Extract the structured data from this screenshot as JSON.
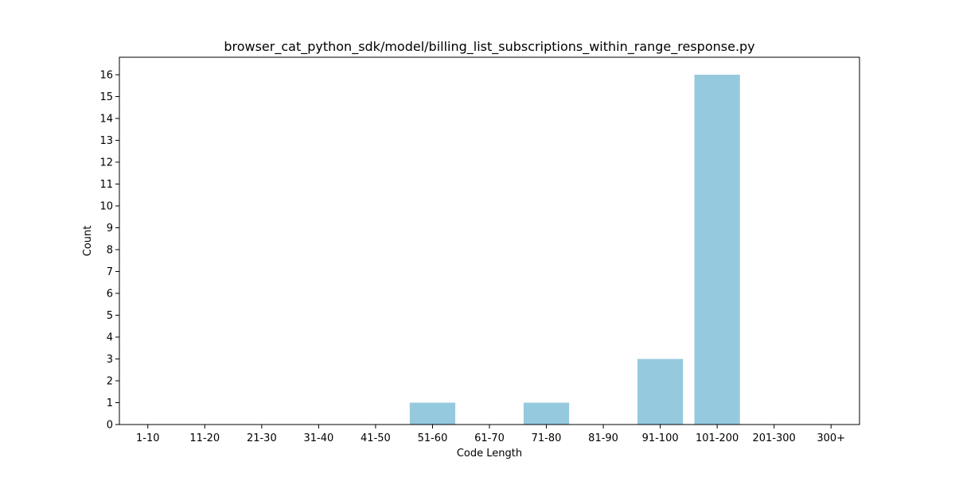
{
  "chart_data": {
    "type": "bar",
    "title": "browser_cat_python_sdk/model/billing_list_subscriptions_within_range_response.py",
    "xlabel": "Code Length",
    "ylabel": "Count",
    "categories": [
      "1-10",
      "11-20",
      "21-30",
      "31-40",
      "41-50",
      "51-60",
      "61-70",
      "71-80",
      "81-90",
      "91-100",
      "101-200",
      "201-300",
      "300+"
    ],
    "values": [
      0,
      0,
      0,
      0,
      0,
      1,
      0,
      1,
      0,
      3,
      16,
      0,
      0
    ],
    "ylim": [
      0,
      16.8
    ],
    "yticks": [
      0,
      1,
      2,
      3,
      4,
      5,
      6,
      7,
      8,
      9,
      10,
      11,
      12,
      13,
      14,
      15,
      16
    ],
    "bar_color": "#95c9de",
    "grid": false,
    "legend": "none"
  }
}
